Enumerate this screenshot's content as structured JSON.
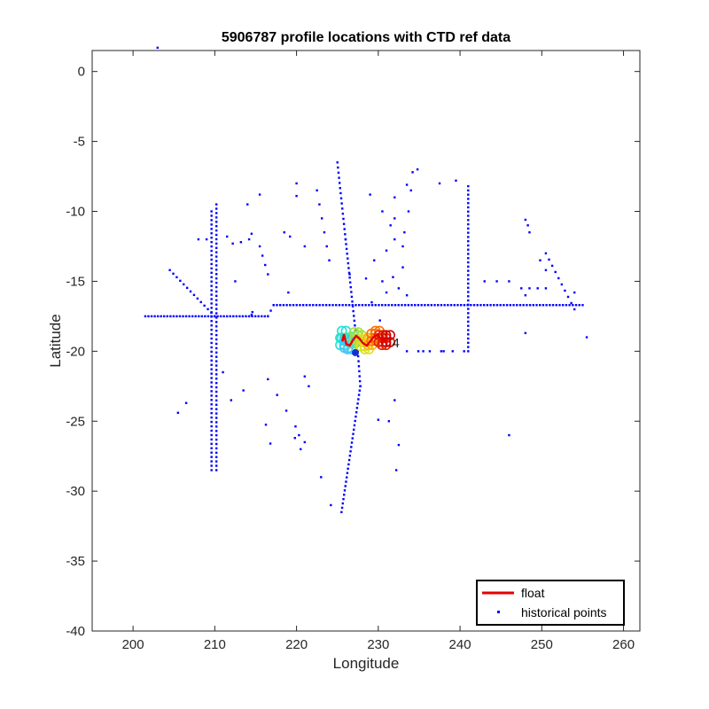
{
  "chart_data": {
    "type": "scatter",
    "title": "5906787 profile locations with CTD ref data",
    "xlabel": "Longitude",
    "ylabel": "Latitude",
    "xlim": [
      195,
      262
    ],
    "ylim": [
      -40,
      1.5
    ],
    "xticks": [
      200,
      210,
      220,
      230,
      240,
      250,
      260
    ],
    "yticks": [
      0,
      -5,
      -10,
      -15,
      -20,
      -25,
      -30,
      -35,
      -40
    ],
    "grid": false,
    "legend_location": "bottom-right",
    "legend": [
      {
        "label": "float",
        "style": "line",
        "color": "#e60000"
      },
      {
        "label": "historical points",
        "style": "marker",
        "color": "#0000ff"
      }
    ],
    "series": [
      {
        "name": "historical points",
        "color": "#0000ff",
        "tracks": [
          {
            "x0": 201.5,
            "y0": -17.5,
            "x1": 216.5,
            "y1": -17.5,
            "n": 40
          },
          {
            "x0": 216.5,
            "y0": -17.5,
            "x1": 217.2,
            "y1": -16.7,
            "n": 3
          },
          {
            "x0": 217.2,
            "y0": -16.7,
            "x1": 255.0,
            "y1": -16.7,
            "n": 95
          },
          {
            "x0": 204.5,
            "y0": -14.2,
            "x1": 210.0,
            "y1": -17.5,
            "n": 14
          },
          {
            "x0": 209.6,
            "y0": -10.0,
            "x1": 209.6,
            "y1": -28.5,
            "n": 60
          },
          {
            "x0": 210.2,
            "y0": -9.5,
            "x1": 210.2,
            "y1": -28.5,
            "n": 62
          },
          {
            "x0": 225.0,
            "y0": -6.5,
            "x1": 226.0,
            "y1": -12.0,
            "n": 16
          },
          {
            "x0": 226.0,
            "y0": -12.0,
            "x1": 227.2,
            "y1": -18.5,
            "n": 20
          },
          {
            "x0": 227.5,
            "y0": -20.0,
            "x1": 227.8,
            "y1": -22.5,
            "n": 8
          },
          {
            "x0": 227.8,
            "y0": -22.5,
            "x1": 225.5,
            "y1": -31.5,
            "n": 30
          },
          {
            "x0": 241.0,
            "y0": -8.2,
            "x1": 241.0,
            "y1": -20.0,
            "n": 40
          },
          {
            "x0": 233.5,
            "y0": -20.0,
            "x1": 240.5,
            "y1": -20.0,
            "n": 6
          },
          {
            "x0": 222.5,
            "y0": -8.5,
            "x1": 224.0,
            "y1": -13.5,
            "n": 6
          },
          {
            "x0": 212.0,
            "y0": -23.5,
            "x1": 220.5,
            "y1": -27.0,
            "n": 3
          },
          {
            "x0": 216.5,
            "y0": -22.0,
            "x1": 221.0,
            "y1": -26.5,
            "n": 5
          },
          {
            "x0": 215.5,
            "y0": -12.5,
            "x1": 216.5,
            "y1": -14.5,
            "n": 4
          },
          {
            "x0": 208.0,
            "y0": -12.0,
            "x1": 209.0,
            "y1": -12.0,
            "n": 2
          },
          {
            "x0": 247.5,
            "y0": -15.5,
            "x1": 250.5,
            "y1": -15.5,
            "n": 4
          },
          {
            "x0": 250.5,
            "y0": -13.0,
            "x1": 254.0,
            "y1": -17.0,
            "n": 10
          },
          {
            "x0": 232.0,
            "y0": -9.0,
            "x1": 232.0,
            "y1": -12.0,
            "n": 3
          }
        ],
        "points": [
          [
            220.0,
            -8.0
          ],
          [
            220.0,
            -8.9
          ],
          [
            215.5,
            -8.8
          ],
          [
            214.0,
            -9.5
          ],
          [
            214.2,
            -12.0
          ],
          [
            214.5,
            -11.6
          ],
          [
            213.2,
            -12.2
          ],
          [
            212.2,
            -12.3
          ],
          [
            211.5,
            -11.8
          ],
          [
            218.5,
            -11.5
          ],
          [
            219.2,
            -11.8
          ],
          [
            221.0,
            -12.5
          ],
          [
            219.0,
            -15.8
          ],
          [
            212.5,
            -15.0
          ],
          [
            214.5,
            -17.4
          ],
          [
            214.6,
            -17.2
          ],
          [
            211.0,
            -21.5
          ],
          [
            213.5,
            -22.8
          ],
          [
            206.5,
            -23.7
          ],
          [
            205.5,
            -24.4
          ],
          [
            216.8,
            -26.6
          ],
          [
            219.8,
            -26.2
          ],
          [
            220.3,
            -26.0
          ],
          [
            221.0,
            -21.8
          ],
          [
            221.5,
            -22.5
          ],
          [
            223.0,
            -29.0
          ],
          [
            224.2,
            -31.0
          ],
          [
            226.5,
            -14.5
          ],
          [
            228.5,
            -14.8
          ],
          [
            229.5,
            -13.5
          ],
          [
            230.5,
            -15.0
          ],
          [
            229.2,
            -16.5
          ],
          [
            231.0,
            -15.8
          ],
          [
            230.2,
            -17.8
          ],
          [
            229.0,
            -8.8
          ],
          [
            230.5,
            -10.0
          ],
          [
            231.5,
            -11.0
          ],
          [
            231.0,
            -12.8
          ],
          [
            231.8,
            -14.7
          ],
          [
            234.0,
            -8.5
          ],
          [
            234.2,
            -7.2
          ],
          [
            234.8,
            -7.0
          ],
          [
            233.5,
            -8.1
          ],
          [
            233.7,
            -10.0
          ],
          [
            233.2,
            -11.5
          ],
          [
            233.0,
            -14.0
          ],
          [
            232.5,
            -15.5
          ],
          [
            233.5,
            -16.0
          ],
          [
            233.0,
            -12.5
          ],
          [
            237.5,
            -8.0
          ],
          [
            239.5,
            -7.8
          ],
          [
            243.0,
            -15.0
          ],
          [
            244.5,
            -15.0
          ],
          [
            246.0,
            -15.0
          ],
          [
            248.0,
            -10.6
          ],
          [
            248.3,
            -11.0
          ],
          [
            248.5,
            -11.5
          ],
          [
            248.0,
            -18.7
          ],
          [
            248.0,
            -16.0
          ],
          [
            250.5,
            -14.2
          ],
          [
            249.8,
            -13.5
          ],
          [
            254.0,
            -15.8
          ],
          [
            255.5,
            -19.0
          ],
          [
            246.0,
            -26.0
          ],
          [
            232.0,
            -23.5
          ],
          [
            231.3,
            -25.0
          ],
          [
            232.5,
            -26.7
          ],
          [
            232.2,
            -28.5
          ],
          [
            230.0,
            -24.9
          ],
          [
            238.0,
            -20.0
          ],
          [
            235.5,
            -20.0
          ],
          [
            203.0,
            1.7
          ]
        ]
      },
      {
        "name": "float",
        "color": "#e60000",
        "path": [
          [
            225.6,
            -19.3
          ],
          [
            225.8,
            -18.8
          ],
          [
            226.1,
            -19.5
          ],
          [
            226.5,
            -19.6
          ],
          [
            226.9,
            -19.2
          ],
          [
            227.3,
            -18.9
          ],
          [
            227.7,
            -19.1
          ],
          [
            228.1,
            -19.4
          ],
          [
            228.6,
            -19.6
          ],
          [
            229.0,
            -19.3
          ],
          [
            229.4,
            -19.0
          ],
          [
            229.9,
            -18.8
          ],
          [
            230.3,
            -19.1
          ],
          [
            230.7,
            -19.3
          ],
          [
            231.2,
            -19.1
          ]
        ]
      }
    ],
    "annotations": [
      {
        "text": "4",
        "x": 231.7,
        "y": -19.4,
        "color": "#c00000"
      }
    ]
  }
}
